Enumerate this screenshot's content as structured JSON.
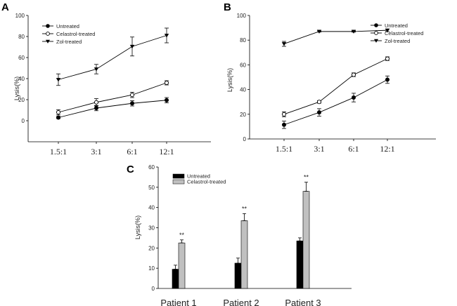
{
  "chart_data": [
    {
      "panel": "A",
      "type": "line",
      "title": "",
      "xlabel": "",
      "ylabel": "Lysis(%)",
      "categories": [
        "1.5:1",
        "3:1",
        "6:1",
        "12:1"
      ],
      "ylim": [
        -20,
        100
      ],
      "yticks": [
        0,
        20,
        40,
        60,
        80,
        100
      ],
      "legend_position": "top-left",
      "series": [
        {
          "name": "Untreated",
          "marker": "filled-circle",
          "values": [
            3,
            12,
            16.5,
            19.5
          ],
          "errors": [
            1,
            2.5,
            2.5,
            2.5
          ]
        },
        {
          "name": "Celastrol-treated",
          "marker": "open-circle",
          "values": [
            8,
            17.5,
            24.5,
            36
          ],
          "errors": [
            2.5,
            3.5,
            2.5,
            2
          ]
        },
        {
          "name": "Zol-treated",
          "marker": "filled-triangle-down",
          "values": [
            39,
            49,
            70.5,
            81
          ],
          "errors": [
            5.5,
            4.5,
            9,
            7
          ]
        }
      ]
    },
    {
      "panel": "B",
      "type": "line",
      "title": "",
      "xlabel": "",
      "ylabel": "Lysis(%)",
      "categories": [
        "1.5:1",
        "3:1",
        "6:1",
        "12:1"
      ],
      "ylim": [
        0,
        100
      ],
      "yticks": [
        0,
        20,
        40,
        60,
        80,
        100
      ],
      "legend_position": "top-right",
      "series": [
        {
          "name": "Untreated",
          "marker": "filled-circle",
          "values": [
            11.5,
            21.5,
            33.5,
            48
          ],
          "errors": [
            3,
            3,
            3.5,
            3
          ]
        },
        {
          "name": "Celastrol-treated",
          "marker": "open-circle",
          "values": [
            20,
            30,
            52,
            65
          ],
          "errors": [
            2,
            1,
            1.5,
            1.5
          ]
        },
        {
          "name": "Zol-treated",
          "marker": "filled-triangle-down",
          "values": [
            77,
            87,
            87,
            88
          ],
          "errors": [
            2,
            0.5,
            0.5,
            1
          ]
        }
      ]
    },
    {
      "panel": "C",
      "type": "bar",
      "title": "",
      "xlabel": "",
      "ylabel": "Lysis(%)",
      "categories": [
        "Patient 1",
        "Patient 2",
        "Patient 3"
      ],
      "ylim": [
        0,
        60
      ],
      "yticks": [
        0,
        10,
        20,
        30,
        40,
        50,
        60
      ],
      "legend_position": "top-left",
      "significance": [
        "**",
        "**",
        "**"
      ],
      "series": [
        {
          "name": "Untreated",
          "color": "#000000",
          "values": [
            9.5,
            12.5,
            23.5
          ],
          "errors": [
            2,
            2.5,
            1.5
          ]
        },
        {
          "name": "Celastrol-treated",
          "color": "#c0c0c0",
          "values": [
            22.5,
            33.5,
            48
          ],
          "errors": [
            1.5,
            3.5,
            4.5
          ]
        }
      ]
    }
  ]
}
